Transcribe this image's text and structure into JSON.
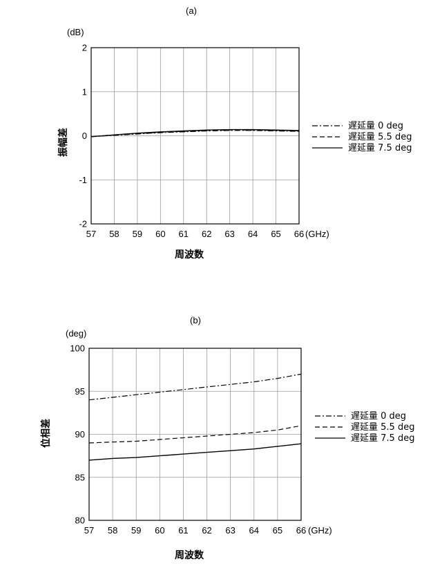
{
  "chart_data": [
    {
      "type": "line",
      "title": "(a)",
      "ylabel": "振幅差",
      "yunit": "(dB)",
      "xlabel": "周波数",
      "xunit": "(GHz)",
      "xlim": [
        57,
        66
      ],
      "ylim": [
        -2,
        2
      ],
      "xticks": [
        "57",
        "58",
        "59",
        "60",
        "61",
        "62",
        "63",
        "64",
        "65",
        "66"
      ],
      "yticks": [
        "-2",
        "-1",
        "0",
        "1",
        "2"
      ],
      "grid": true,
      "legend_position": "right",
      "x": [
        57,
        58,
        59,
        60,
        61,
        62,
        63,
        64,
        65,
        66
      ],
      "series": [
        {
          "name": "遅延量 0 deg",
          "style": "dashdot",
          "values": [
            -0.02,
            0.01,
            0.04,
            0.07,
            0.09,
            0.11,
            0.12,
            0.12,
            0.11,
            0.1
          ]
        },
        {
          "name": "遅延量 5.5 deg",
          "style": "dashed",
          "values": [
            -0.02,
            0.02,
            0.05,
            0.08,
            0.1,
            0.12,
            0.13,
            0.13,
            0.12,
            0.11
          ]
        },
        {
          "name": "遅延量 7.5 deg",
          "style": "solid",
          "values": [
            -0.02,
            0.02,
            0.06,
            0.09,
            0.11,
            0.13,
            0.14,
            0.14,
            0.13,
            0.12
          ]
        }
      ]
    },
    {
      "type": "line",
      "title": "(b)",
      "ylabel": "位相差",
      "yunit": "(deg)",
      "xlabel": "周波数",
      "xunit": "(GHz)",
      "xlim": [
        57,
        66
      ],
      "ylim": [
        80,
        100
      ],
      "xticks": [
        "57",
        "58",
        "59",
        "60",
        "61",
        "62",
        "63",
        "64",
        "65",
        "66"
      ],
      "yticks": [
        "80",
        "85",
        "90",
        "95",
        "100"
      ],
      "grid": true,
      "legend_position": "right",
      "x": [
        57,
        58,
        59,
        60,
        61,
        62,
        63,
        64,
        65,
        66
      ],
      "series": [
        {
          "name": "遅延量 0 deg",
          "style": "dashdot",
          "values": [
            94.0,
            94.3,
            94.6,
            94.9,
            95.2,
            95.5,
            95.8,
            96.1,
            96.5,
            97.0
          ]
        },
        {
          "name": "遅延量 5.5 deg",
          "style": "dashed",
          "values": [
            89.0,
            89.1,
            89.2,
            89.4,
            89.6,
            89.8,
            90.0,
            90.2,
            90.5,
            91.0
          ]
        },
        {
          "name": "遅延量 7.5 deg",
          "style": "solid",
          "values": [
            87.0,
            87.2,
            87.3,
            87.5,
            87.7,
            87.9,
            88.1,
            88.3,
            88.6,
            88.9
          ]
        }
      ]
    }
  ]
}
